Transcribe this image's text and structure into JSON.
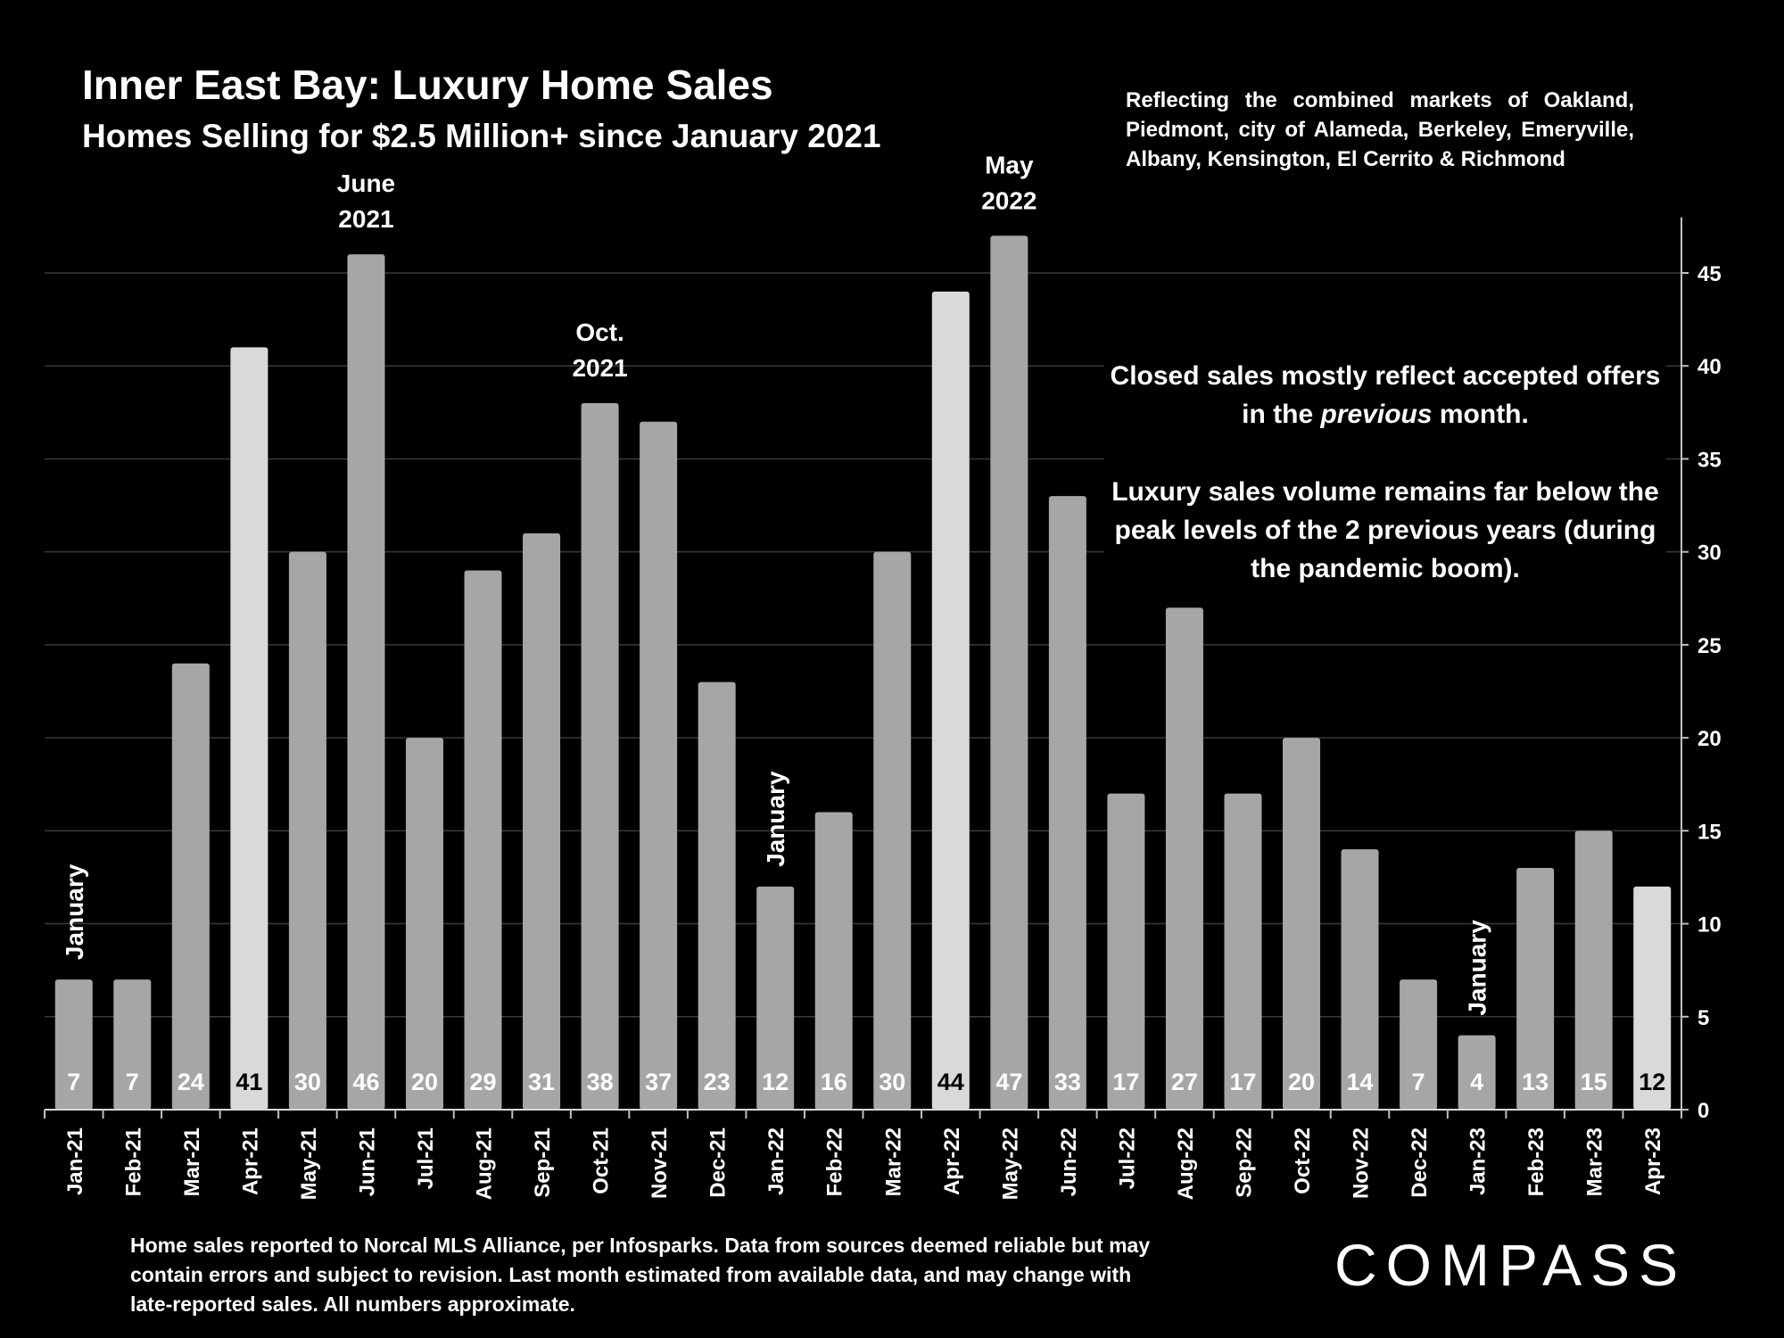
{
  "title": "Inner East Bay: Luxury Home Sales",
  "subtitle": "Homes Selling for $2.5 Million+ since January 2021",
  "markets_note": "Reflecting the combined markets of Oakland, Piedmont, city of Alameda, Berkeley, Emeryville, Albany, Kensington, El Cerrito & Richmond",
  "commentary": {
    "line1_prefix": "Closed sales mostly reflect accepted offers in the ",
    "line1_emph": "previous",
    "line1_suffix": " month.",
    "line2": "Luxury sales volume remains far below the peak levels of the 2 previous years (during the pandemic boom)."
  },
  "footnote": "Home sales reported to Norcal MLS Alliance, per Infosparks. Data from sources deemed reliable but may contain errors and subject to revision.  Last month estimated from available data, and may change with late-reported sales. All numbers approximate.",
  "logo": "COMPASS",
  "colors": {
    "bar": "#a6a6a6",
    "highlight": "#d9d9d9",
    "background": "#000000",
    "grid": "#3a3a3a"
  },
  "chart_data": {
    "type": "bar",
    "categories": [
      "Jan-21",
      "Feb-21",
      "Mar-21",
      "Apr-21",
      "May-21",
      "Jun-21",
      "Jul-21",
      "Aug-21",
      "Sep-21",
      "Oct-21",
      "Nov-21",
      "Dec-21",
      "Jan-22",
      "Feb-22",
      "Mar-22",
      "Apr-22",
      "May-22",
      "Jun-22",
      "Jul-22",
      "Aug-22",
      "Sep-22",
      "Oct-22",
      "Nov-22",
      "Dec-22",
      "Jan-23",
      "Feb-23",
      "Mar-23",
      "Apr-23"
    ],
    "values": [
      7,
      7,
      24,
      41,
      30,
      46,
      20,
      29,
      31,
      38,
      37,
      23,
      12,
      16,
      30,
      44,
      47,
      33,
      17,
      27,
      17,
      20,
      14,
      7,
      4,
      13,
      15,
      12
    ],
    "highlighted": [
      "Apr-21",
      "Apr-22",
      "Apr-23"
    ],
    "ylim": [
      0,
      48
    ],
    "yticks": [
      0,
      5,
      10,
      15,
      20,
      25,
      30,
      35,
      40,
      45
    ],
    "y_axis_side": "right",
    "grid": true,
    "annotations": [
      {
        "category": "Jan-21",
        "text": "January",
        "vertical": true
      },
      {
        "category": "Jun-21",
        "text": "June 2021",
        "vertical": false
      },
      {
        "category": "Oct-21",
        "text": "Oct. 2021",
        "vertical": false
      },
      {
        "category": "Jan-22",
        "text": "January",
        "vertical": true
      },
      {
        "category": "May-22",
        "text": "May 2022",
        "vertical": false
      },
      {
        "category": "Jan-23",
        "text": "January",
        "vertical": true
      }
    ]
  }
}
